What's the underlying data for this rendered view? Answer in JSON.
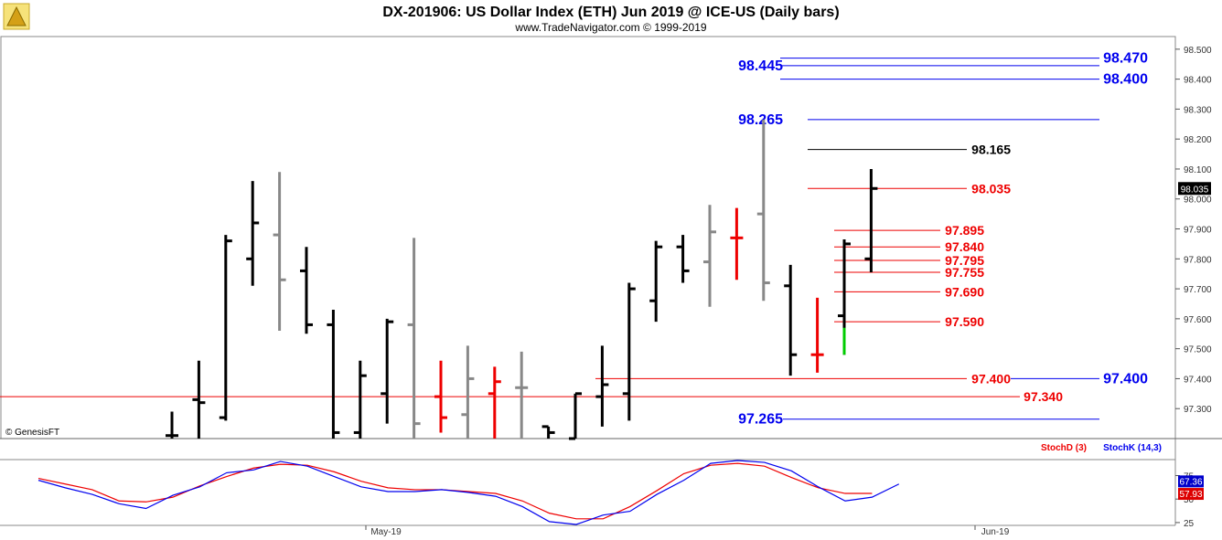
{
  "header": {
    "title": "DX-201906:  US Dollar Index (ETH) Jun 2019 @ ICE-US  (Daily bars)",
    "subtitle": "www.TradeNavigator.com © 1999-2019",
    "credit": "© GenesisFT"
  },
  "colors": {
    "up": "#000000",
    "down": "#888888",
    "red": "#ee0000",
    "green": "#00cc00",
    "blue_level": "#0000ee",
    "red_level": "#ee0000",
    "stoch_d": "#ee0000",
    "stoch_k": "#0000ee"
  },
  "chart_data": [
    {
      "type": "ohlc",
      "ylim": [
        97.2,
        98.53
      ],
      "y_ticks": [
        "98.500",
        "98.400",
        "98.300",
        "98.200",
        "98.100",
        "98.000",
        "97.900",
        "97.800",
        "97.700",
        "97.600",
        "97.500",
        "97.400",
        "97.300"
      ],
      "current_value_label": "98.035",
      "bars": [
        {
          "o": 97.21,
          "h": 97.29,
          "l": 97.2,
          "c": 97.21,
          "color": "black"
        },
        {
          "o": 97.33,
          "h": 97.46,
          "l": 97.2,
          "c": 97.32,
          "color": "black"
        },
        {
          "o": 97.27,
          "h": 97.88,
          "l": 97.26,
          "c": 97.86,
          "color": "black"
        },
        {
          "o": 97.8,
          "h": 98.06,
          "l": 97.71,
          "c": 97.92,
          "color": "black"
        },
        {
          "o": 97.88,
          "h": 98.09,
          "l": 97.56,
          "c": 97.73,
          "color": "gray"
        },
        {
          "o": 97.76,
          "h": 97.84,
          "l": 97.55,
          "c": 97.58,
          "color": "black"
        },
        {
          "o": 97.58,
          "h": 97.63,
          "l": 97.2,
          "c": 97.22,
          "color": "black"
        },
        {
          "o": 97.22,
          "h": 97.46,
          "l": 97.2,
          "c": 97.41,
          "color": "black"
        },
        {
          "o": 97.35,
          "h": 97.6,
          "l": 97.25,
          "c": 97.59,
          "color": "black"
        },
        {
          "o": 97.58,
          "h": 97.87,
          "l": 97.2,
          "c": 97.25,
          "color": "gray"
        },
        {
          "o": 97.34,
          "h": 97.46,
          "l": 97.22,
          "c": 97.27,
          "color": "red"
        },
        {
          "o": 97.28,
          "h": 97.51,
          "l": 97.2,
          "c": 97.4,
          "color": "gray"
        },
        {
          "o": 97.35,
          "h": 97.44,
          "l": 97.2,
          "c": 97.39,
          "color": "red"
        },
        {
          "o": 97.37,
          "h": 97.49,
          "l": 97.2,
          "c": 97.37,
          "color": "gray"
        },
        {
          "o": 97.24,
          "h": 97.24,
          "l": 97.2,
          "c": 97.22,
          "color": "black"
        },
        {
          "o": 97.2,
          "h": 97.35,
          "l": 97.2,
          "c": 97.35,
          "color": "black"
        },
        {
          "o": 97.34,
          "h": 97.51,
          "l": 97.24,
          "c": 97.38,
          "color": "black"
        },
        {
          "o": 97.35,
          "h": 97.72,
          "l": 97.26,
          "c": 97.7,
          "color": "black"
        },
        {
          "o": 97.66,
          "h": 97.86,
          "l": 97.59,
          "c": 97.84,
          "color": "black"
        },
        {
          "o": 97.84,
          "h": 97.88,
          "l": 97.72,
          "c": 97.76,
          "color": "black"
        },
        {
          "o": 97.79,
          "h": 97.98,
          "l": 97.64,
          "c": 97.89,
          "color": "gray"
        },
        {
          "o": 97.87,
          "h": 97.97,
          "l": 97.73,
          "c": 97.87,
          "color": "red"
        },
        {
          "o": 97.95,
          "h": 98.265,
          "l": 97.66,
          "c": 97.72,
          "color": "gray"
        },
        {
          "o": 97.71,
          "h": 97.78,
          "l": 97.41,
          "c": 97.48,
          "color": "black"
        },
        {
          "o": 97.48,
          "h": 97.67,
          "l": 97.42,
          "c": 97.48,
          "color": "red"
        },
        {
          "o": 97.61,
          "h": 97.865,
          "l": 97.48,
          "c": 97.85,
          "color": "black",
          "tail_color": "green",
          "tail_low": 97.57
        },
        {
          "o": 97.8,
          "h": 98.1,
          "l": 97.755,
          "c": 98.035,
          "color": "black"
        }
      ],
      "levels": [
        {
          "value": 98.47,
          "label": "98.470",
          "color": "blue",
          "side": "right"
        },
        {
          "value": 98.445,
          "label": "98.445",
          "color": "blue",
          "side": "left"
        },
        {
          "value": 98.4,
          "label": "98.400",
          "color": "blue",
          "side": "right"
        },
        {
          "value": 98.265,
          "label": "98.265",
          "color": "blue",
          "side": "left"
        },
        {
          "value": 98.165,
          "label": "98.165",
          "color": "black",
          "side": "right"
        },
        {
          "value": 98.035,
          "label": "98.035",
          "color": "red",
          "side": "right"
        },
        {
          "value": 97.895,
          "label": "97.895",
          "color": "red",
          "side": "right"
        },
        {
          "value": 97.84,
          "label": "97.840",
          "color": "red",
          "side": "right"
        },
        {
          "value": 97.795,
          "label": "97.795",
          "color": "red",
          "side": "right"
        },
        {
          "value": 97.755,
          "label": "97.755",
          "color": "red",
          "side": "right"
        },
        {
          "value": 97.69,
          "label": "97.690",
          "color": "red",
          "side": "right"
        },
        {
          "value": 97.59,
          "label": "97.590",
          "color": "red",
          "side": "right"
        },
        {
          "value": 97.4,
          "label": "97.400",
          "color": "red",
          "side": "right"
        },
        {
          "value": 97.4,
          "label": "97.400",
          "color": "blue",
          "side": "right"
        },
        {
          "value": 97.34,
          "label": "97.340",
          "color": "red",
          "side": "right"
        },
        {
          "value": 97.265,
          "label": "97.265",
          "color": "blue",
          "side": "left"
        }
      ]
    },
    {
      "type": "line",
      "ylim": [
        22,
        92
      ],
      "y_ticks": [
        "75",
        "50",
        "25"
      ],
      "x_labels": [
        "May-19",
        "Jun-19"
      ],
      "series": [
        {
          "name": "StochD (3)",
          "color": "red",
          "values": [
            72,
            66,
            60,
            48,
            47,
            52,
            64,
            74,
            83,
            87,
            86,
            79,
            69,
            62,
            60,
            60,
            58,
            56,
            48,
            35,
            29,
            29,
            42,
            59,
            77,
            86,
            88,
            85,
            73,
            62,
            56,
            56
          ]
        },
        {
          "name": "StochK (14,3)",
          "color": "blue",
          "values": [
            70,
            62,
            55,
            45,
            40,
            54,
            63,
            78,
            81,
            90,
            85,
            74,
            63,
            58,
            58,
            60,
            57,
            53,
            42,
            26,
            23,
            33,
            37,
            55,
            70,
            88,
            91,
            89,
            80,
            63,
            48,
            52,
            66
          ]
        }
      ],
      "value_labels": {
        "stoch_k": "67.36",
        "stoch_d": "57.93"
      }
    }
  ]
}
